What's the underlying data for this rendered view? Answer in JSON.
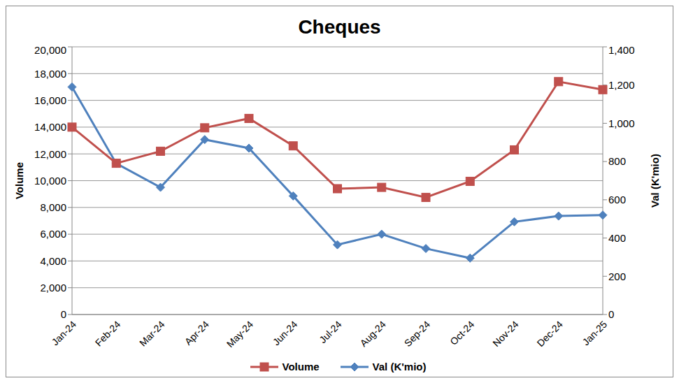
{
  "chart_data": {
    "type": "line",
    "title": "Cheques",
    "categories": [
      "Jan-24",
      "Feb-24",
      "Mar-24",
      "Apr-24",
      "May-24",
      "Jun-24",
      "Jul-24",
      "Aug-24",
      "Sep-24",
      "Oct-24",
      "Nov-24",
      "Dec-24",
      "Jan-25"
    ],
    "series": [
      {
        "name": "Volume",
        "color": "#c0504d",
        "marker": "square",
        "values": [
          14000,
          11300,
          12200,
          13950,
          14650,
          12600,
          9400,
          9500,
          8750,
          9950,
          12300,
          17400,
          16800
        ]
      },
      {
        "name": "Val (K'mio)",
        "color": "#4f81bd",
        "marker": "diamond",
        "axis": "y2",
        "values": [
          1190,
          790,
          665,
          915,
          870,
          620,
          365,
          420,
          345,
          295,
          485,
          515,
          520
        ]
      }
    ],
    "y_label": "Volume",
    "y2_label": "Val (K'mio)",
    "ylim": [
      0,
      20000
    ],
    "yticks": [
      0,
      {
        "value": 2000,
        "label": "2,000"
      },
      {
        "value": 4000,
        "label": "4,000"
      },
      {
        "value": 6000,
        "label": "6,000"
      },
      {
        "value": 8000,
        "label": "8,000"
      },
      {
        "value": 10000,
        "label": "10,000"
      },
      {
        "value": 12000,
        "label": "12,000"
      },
      {
        "value": 14000,
        "label": "14,000"
      },
      {
        "value": 16000,
        "label": "16,000"
      },
      {
        "value": 18000,
        "label": "18,000"
      },
      {
        "value": 20000,
        "label": "20,000"
      }
    ],
    "y2lim": [
      0,
      1400
    ],
    "y2ticks": [
      0,
      200,
      400,
      600,
      800,
      {
        "value": 1000,
        "label": "1,000"
      },
      {
        "value": 1200,
        "label": "1,200"
      },
      {
        "value": 1400,
        "label": "1,400"
      }
    ],
    "grid": true,
    "legend": "bottom"
  }
}
